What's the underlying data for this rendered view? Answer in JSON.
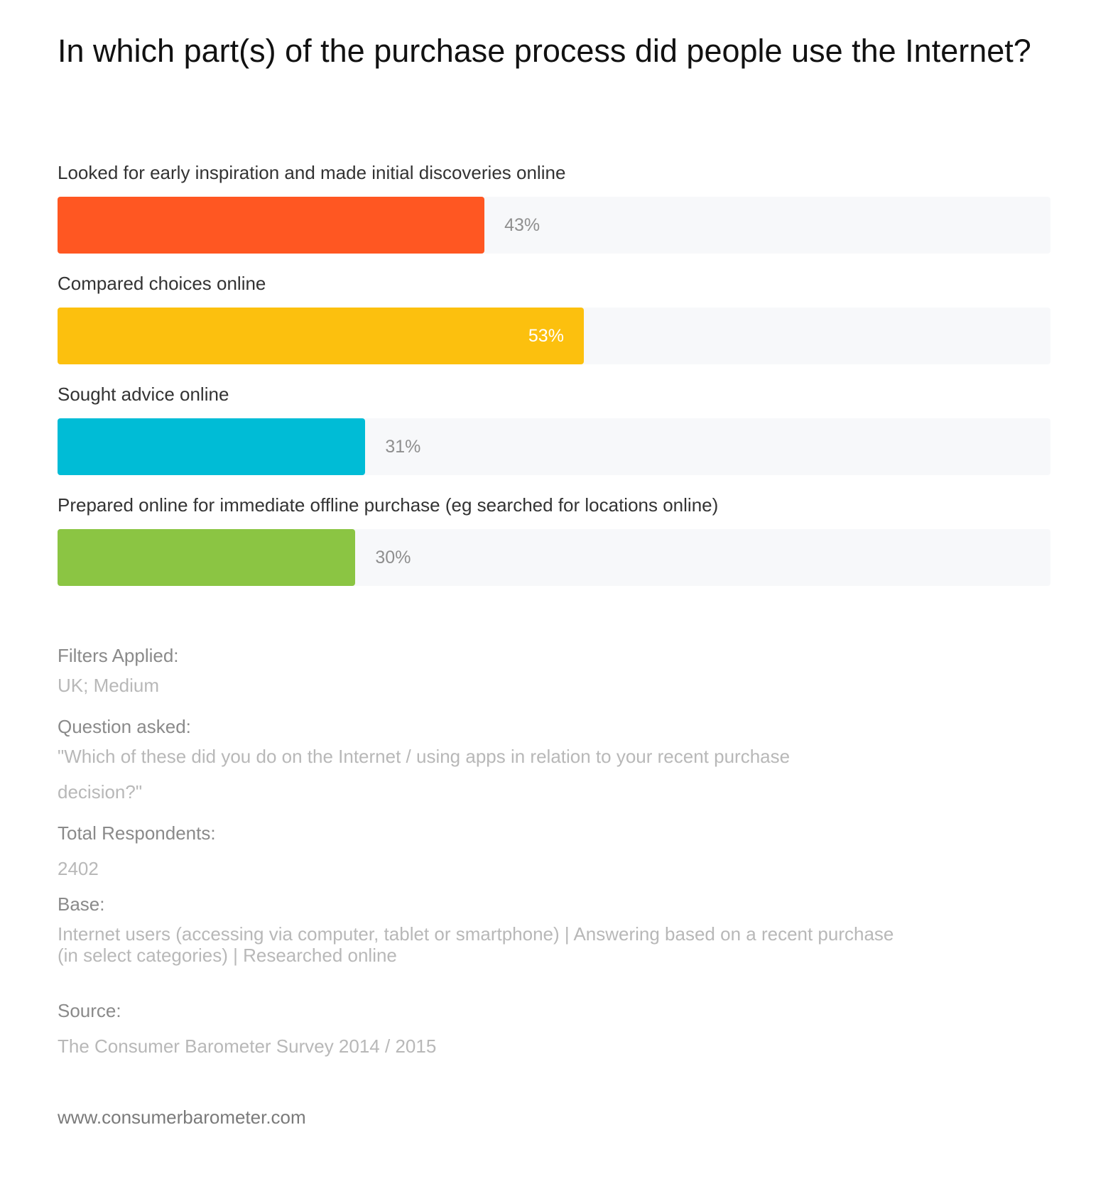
{
  "title": "In which part(s) of the purchase process did people use the Internet?",
  "chart_data": {
    "type": "bar",
    "orientation": "horizontal",
    "categories": [
      "Looked for early inspiration and made initial discoveries online",
      "Compared choices online",
      "Sought advice online",
      "Prepared online for immediate offline purchase (eg searched for locations online)"
    ],
    "values": [
      43,
      53,
      31,
      30
    ],
    "value_labels": [
      "43%",
      "53%",
      "31%",
      "30%"
    ],
    "colors": [
      "#ff5722",
      "#fcc00e",
      "#00bcd6",
      "#8bc543"
    ],
    "track_color": "#f7f8fa",
    "xlim": [
      0,
      100
    ],
    "unit": "%",
    "grid": false
  },
  "meta": {
    "filters_label": "Filters Applied:",
    "filters_value": "UK; Medium",
    "question_label": "Question asked:",
    "question_line1": "\"Which of these did you do on the Internet / using apps in relation to your recent purchase",
    "question_line2": "decision?\"",
    "respondents_label": "Total Respondents:",
    "respondents_value": "2402",
    "base_label": "Base:",
    "base_line1": "Internet users (accessing via computer, tablet or smartphone) | Answering based on a recent purchase",
    "base_line2": "(in select categories) | Researched online",
    "source_label": "Source:",
    "source_value": "The Consumer Barometer Survey 2014 / 2015"
  },
  "footer": {
    "url": "www.consumerbarometer.com"
  }
}
